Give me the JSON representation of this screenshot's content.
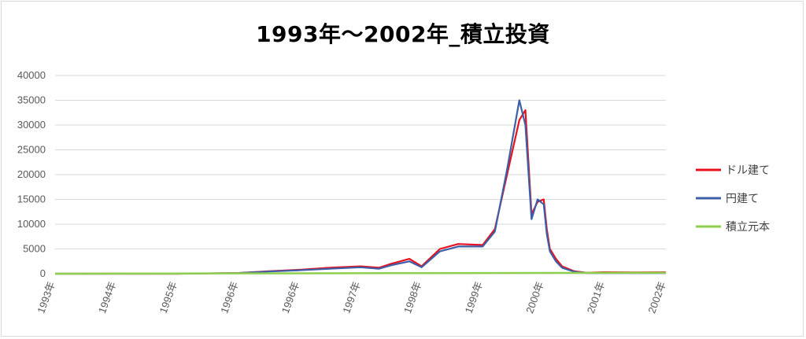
{
  "chart_data": {
    "type": "line",
    "title": "1993年～2002年_積立投資",
    "xlabel": "",
    "ylabel": "",
    "ylim": [
      0,
      40000
    ],
    "yticks": [
      "0",
      "5000",
      "10000",
      "15000",
      "20000",
      "25000",
      "30000",
      "35000",
      "40000"
    ],
    "xticks": [
      "1993年",
      "1994年",
      "1995年",
      "1996年",
      "1996年",
      "1997年",
      "1998年",
      "1999年",
      "2000年",
      "2001年",
      "2002年"
    ],
    "grid": "horizontal",
    "legend_position": "right",
    "colors": {
      "ドル建て": "#e8101e",
      "円建て": "#3d5fa8",
      "積立元本": "#8fcf4f"
    },
    "series": [
      {
        "name": "ドル建て",
        "x": [
          0,
          1,
          2,
          3,
          3.5,
          4,
          4.5,
          5,
          5.3,
          5.5,
          5.8,
          6,
          6.3,
          6.6,
          7,
          7.2,
          7.4,
          7.6,
          7.7,
          7.8,
          7.9,
          8.0,
          8.05,
          8.1,
          8.2,
          8.3,
          8.5,
          8.7,
          9,
          9.5,
          10
        ],
        "values": [
          0,
          0,
          0,
          150,
          500,
          800,
          1200,
          1500,
          1200,
          2000,
          3000,
          1500,
          5000,
          6000,
          5800,
          9000,
          20000,
          31000,
          33000,
          12000,
          14500,
          15000,
          9000,
          5000,
          3000,
          1500,
          500,
          200,
          300,
          250,
          300
        ]
      },
      {
        "name": "円建て",
        "x": [
          0,
          1,
          2,
          3,
          3.5,
          4,
          4.5,
          5,
          5.3,
          5.5,
          5.8,
          6,
          6.3,
          6.6,
          7,
          7.2,
          7.4,
          7.6,
          7.7,
          7.8,
          7.9,
          8.0,
          8.05,
          8.1,
          8.2,
          8.3,
          8.5,
          8.7,
          9,
          9.5,
          10
        ],
        "values": [
          0,
          0,
          0,
          120,
          450,
          700,
          1000,
          1300,
          1000,
          1700,
          2500,
          1300,
          4500,
          5500,
          5500,
          8500,
          21000,
          35000,
          30000,
          11000,
          15000,
          14000,
          8000,
          4500,
          2500,
          1200,
          400,
          150,
          150,
          120,
          150
        ]
      },
      {
        "name": "積立元本",
        "x": [
          0,
          2,
          4,
          6,
          8,
          10
        ],
        "values": [
          0,
          40,
          80,
          120,
          160,
          200
        ]
      }
    ]
  }
}
